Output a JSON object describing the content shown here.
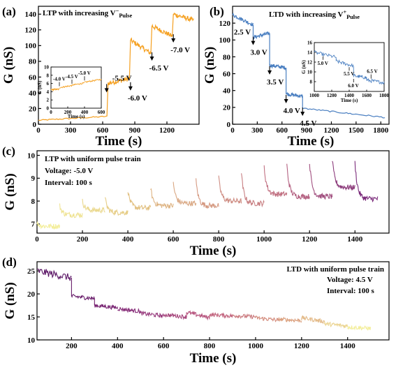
{
  "colors": {
    "ltp_orange": "#F5A020",
    "ltd_blue": "#4A7FC1",
    "grad_c": [
      "#F3EE9A",
      "#E4C883",
      "#D59A82",
      "#BE6A82",
      "#7A2A7A"
    ],
    "grad_d": [
      "#5A1565",
      "#8A2E7A",
      "#BE5A7E",
      "#D99A7C",
      "#F3EE9A"
    ]
  },
  "chart_data": [
    {
      "panel": "(a)",
      "type": "line",
      "title": "LTP with increasing V",
      "title_sup": "−",
      "title_sub": "Pulse",
      "xlabel": "Time (s)",
      "ylabel": "G (nS)",
      "xlim": [
        0,
        1500
      ],
      "ylim": [
        0,
        150
      ],
      "xticks": [
        0,
        300,
        600,
        900,
        1200
      ],
      "yticks": [
        0,
        20,
        40,
        60,
        80,
        100,
        120,
        140
      ],
      "series": [
        {
          "segments": [
            {
              "x": [
                0,
                640
              ],
              "y": [
                5,
                10
              ]
            },
            {
              "x": [
                650,
                850
              ],
              "y": [
                52,
                58
              ]
            },
            {
              "x": [
                860,
                1050
              ],
              "y": [
                107,
                90
              ]
            },
            {
              "x": [
                1060,
                1250
              ],
              "y": [
                125,
                112
              ]
            },
            {
              "x": [
                1260,
                1450
              ],
              "y": [
                140,
                132
              ]
            }
          ]
        }
      ],
      "annotations": [
        {
          "text": "-5.5 V",
          "x": 650,
          "y": 52
        },
        {
          "text": "-6.0 V",
          "x": 860,
          "y": 57
        },
        {
          "text": "-6.5 V",
          "x": 1060,
          "y": 95
        },
        {
          "text": "-7.0 V",
          "x": 1260,
          "y": 118
        }
      ],
      "inset": {
        "xlabel": "Time (s)",
        "ylabel": "G (nS)",
        "xlim": [
          0,
          600
        ],
        "ylim": [
          0,
          10
        ],
        "xticks": [
          0,
          200,
          400,
          600
        ],
        "yticks": [
          0,
          2,
          4,
          6,
          8,
          10
        ],
        "segments": [
          {
            "x": [
              0,
              100
            ],
            "y": [
              4.5,
              4.6
            ]
          },
          {
            "x": [
              100,
              250
            ],
            "y": [
              5.0,
              5.5
            ]
          },
          {
            "x": [
              250,
              400
            ],
            "y": [
              5.6,
              6.1
            ]
          },
          {
            "x": [
              400,
              600
            ],
            "y": [
              6.3,
              7.0
            ]
          }
        ],
        "annotations": [
          {
            "text": "-4.0 V",
            "x": 100,
            "y": 5.0
          },
          {
            "text": "-4.5 V",
            "x": 250,
            "y": 5.6
          },
          {
            "text": "-5.0 V",
            "x": 400,
            "y": 6.4
          }
        ]
      }
    },
    {
      "panel": "(b)",
      "type": "line",
      "title": "LTD with increasing V",
      "title_sup": "+",
      "title_sub": "Pulse",
      "xlabel": "Time (s)",
      "ylabel": "G (nS)",
      "xlim": [
        0,
        1900
      ],
      "ylim": [
        0,
        140
      ],
      "xticks": [
        0,
        300,
        600,
        900,
        1200,
        1500,
        1800
      ],
      "yticks": [
        0,
        20,
        40,
        60,
        80,
        100,
        120
      ],
      "series": [
        {
          "segments": [
            {
              "x": [
                0,
                250
              ],
              "y": [
                130,
                118
              ]
            },
            {
              "x": [
                250,
                450
              ],
              "y": [
                103,
                108
              ]
            },
            {
              "x": [
                450,
                650
              ],
              "y": [
                70,
                67
              ]
            },
            {
              "x": [
                650,
                850
              ],
              "y": [
                36,
                33
              ]
            },
            {
              "x": [
                850,
                1850
              ],
              "y": [
                19,
                8
              ]
            }
          ]
        }
      ],
      "annotations": [
        {
          "text": "2.5 V",
          "x": 50,
          "y": 128
        },
        {
          "text": "3.0 V",
          "x": 250,
          "y": 103
        },
        {
          "text": "3.5 V",
          "x": 450,
          "y": 68
        },
        {
          "text": "4.0 V",
          "x": 650,
          "y": 34
        },
        {
          "text": "4.5 V",
          "x": 850,
          "y": 19
        }
      ],
      "inset": {
        "xlabel": "Time (s)",
        "ylabel": "G (nS)",
        "xlim": [
          1000,
          1800
        ],
        "ylim": [
          6,
          16
        ],
        "xticks": [
          1000,
          1200,
          1400,
          1600,
          1800
        ],
        "yticks": [
          8,
          10,
          12,
          14,
          16
        ],
        "segments": [
          {
            "x": [
              1000,
              1250
            ],
            "y": [
              14.0,
              13.0
            ]
          },
          {
            "x": [
              1250,
              1450
            ],
            "y": [
              12.2,
              11.2
            ]
          },
          {
            "x": [
              1450,
              1600
            ],
            "y": [
              9.2,
              8.8
            ]
          },
          {
            "x": [
              1600,
              1800
            ],
            "y": [
              8.3,
              7.8
            ]
          }
        ],
        "annotations": [
          {
            "text": "5.0 V",
            "x": 1100,
            "y": 13.6
          },
          {
            "text": "5.5 V",
            "x": 1400,
            "y": 11.4
          },
          {
            "text": "6.0 V",
            "x": 1450,
            "y": 9.0
          },
          {
            "text": "6.5 V",
            "x": 1650,
            "y": 8.2
          }
        ]
      }
    },
    {
      "panel": "(c)",
      "type": "line",
      "title": "LTP with uniform pulse train",
      "subtitle_lines": [
        "Voltage: -5.0 V",
        "Interval: 100 s"
      ],
      "xlabel": "Time (s)",
      "ylabel": "G (nS)",
      "xlim": [
        0,
        1550
      ],
      "ylim": [
        6.6,
        10.2
      ],
      "xticks": [
        0,
        200,
        400,
        600,
        800,
        1000,
        1200,
        1400
      ],
      "yticks": [
        7,
        8,
        9,
        10
      ],
      "segments": [
        {
          "x": [
            0,
            100
          ],
          "start": 7.05,
          "end": 6.9
        },
        {
          "x": [
            100,
            200
          ],
          "start": 7.8,
          "end": 7.4
        },
        {
          "x": [
            200,
            300
          ],
          "start": 8.0,
          "end": 7.6
        },
        {
          "x": [
            300,
            400
          ],
          "start": 8.1,
          "end": 7.5
        },
        {
          "x": [
            400,
            500
          ],
          "start": 8.5,
          "end": 7.7
        },
        {
          "x": [
            500,
            600
          ],
          "start": 8.6,
          "end": 7.8
        },
        {
          "x": [
            600,
            700
          ],
          "start": 8.8,
          "end": 7.9
        },
        {
          "x": [
            700,
            800
          ],
          "start": 8.9,
          "end": 7.8
        },
        {
          "x": [
            800,
            900
          ],
          "start": 9.0,
          "end": 8.0
        },
        {
          "x": [
            900,
            1000
          ],
          "start": 9.2,
          "end": 7.9
        },
        {
          "x": [
            1000,
            1100
          ],
          "start": 9.5,
          "end": 8.3
        },
        {
          "x": [
            1100,
            1200
          ],
          "start": 9.6,
          "end": 8.2
        },
        {
          "x": [
            1200,
            1300
          ],
          "start": 9.7,
          "end": 8.2
        },
        {
          "x": [
            1300,
            1400
          ],
          "start": 9.8,
          "end": 8.6
        },
        {
          "x": [
            1400,
            1500
          ],
          "start": 9.7,
          "end": 8.1
        }
      ]
    },
    {
      "panel": "(d)",
      "type": "line",
      "title": "LTD with uniform pulse train",
      "subtitle_lines": [
        "Voltage: 4.5 V",
        "Interval: 100 s"
      ],
      "xlabel": "Time (s)",
      "ylabel": "G (nS)",
      "xlim": [
        50,
        1580
      ],
      "ylim": [
        10,
        27
      ],
      "xticks": [
        200,
        400,
        600,
        800,
        1000,
        1200,
        1400
      ],
      "yticks": [
        10,
        15,
        20,
        25
      ],
      "segments": [
        {
          "x": [
            50,
            200
          ],
          "start": 25.0,
          "end": 23.5
        },
        {
          "x": [
            200,
            300
          ],
          "start": 19.5,
          "end": 19.0
        },
        {
          "x": [
            300,
            400
          ],
          "start": 17.5,
          "end": 17.0
        },
        {
          "x": [
            400,
            500
          ],
          "start": 16.8,
          "end": 16.2
        },
        {
          "x": [
            500,
            600
          ],
          "start": 15.8,
          "end": 15.2
        },
        {
          "x": [
            600,
            700
          ],
          "start": 15.5,
          "end": 15.0
        },
        {
          "x": [
            700,
            800
          ],
          "start": 16.0,
          "end": 14.8
        },
        {
          "x": [
            800,
            900
          ],
          "start": 15.5,
          "end": 15.2
        },
        {
          "x": [
            900,
            1000
          ],
          "start": 15.3,
          "end": 15.0
        },
        {
          "x": [
            1000,
            1100
          ],
          "start": 14.8,
          "end": 14.3
        },
        {
          "x": [
            1100,
            1200
          ],
          "start": 14.5,
          "end": 14.2
        },
        {
          "x": [
            1200,
            1300
          ],
          "start": 14.8,
          "end": 14.0
        },
        {
          "x": [
            1300,
            1400
          ],
          "start": 13.5,
          "end": 13.0
        },
        {
          "x": [
            1400,
            1500
          ],
          "start": 12.8,
          "end": 12.5
        }
      ]
    }
  ]
}
